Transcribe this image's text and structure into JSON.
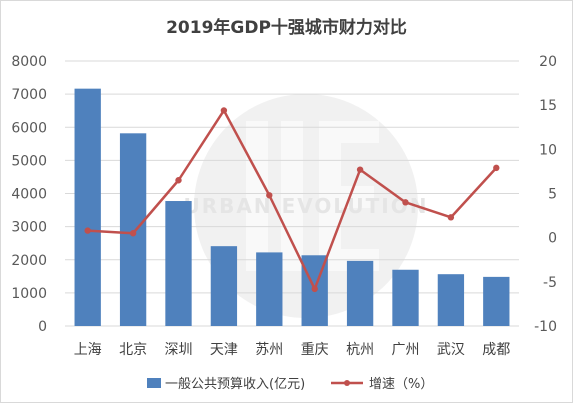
{
  "chart_data": {
    "type": "bar+line",
    "title": "2019年GDP十强城市财力对比",
    "categories": [
      "上海",
      "北京",
      "深圳",
      "天津",
      "苏州",
      "重庆",
      "杭州",
      "广州",
      "武汉",
      "成都"
    ],
    "series": [
      {
        "name": "一般公共预算收入(亿元)",
        "type": "bar",
        "axis": "left",
        "color": "#4f81bd",
        "values": [
          7165,
          5817,
          3773,
          2410,
          2222,
          2135,
          1966,
          1698,
          1564,
          1483
        ]
      },
      {
        "name": "增速（%）",
        "type": "line",
        "axis": "right",
        "color": "#c0504d",
        "values": [
          0.8,
          0.5,
          6.5,
          14.4,
          4.8,
          -5.8,
          7.7,
          4.0,
          2.3,
          7.9
        ]
      }
    ],
    "y_left": {
      "min": 0,
      "max": 8000,
      "step": 1000,
      "ticks": [
        "0",
        "1000",
        "2000",
        "3000",
        "4000",
        "5000",
        "6000",
        "7000",
        "8000"
      ]
    },
    "y_right": {
      "min": -10,
      "max": 20,
      "step": 5,
      "ticks": [
        "-10",
        "-5",
        "0",
        "5",
        "10",
        "15",
        "20"
      ]
    },
    "grid": true,
    "legend_position": "bottom",
    "watermark": "URBAN EVOLUTION"
  }
}
